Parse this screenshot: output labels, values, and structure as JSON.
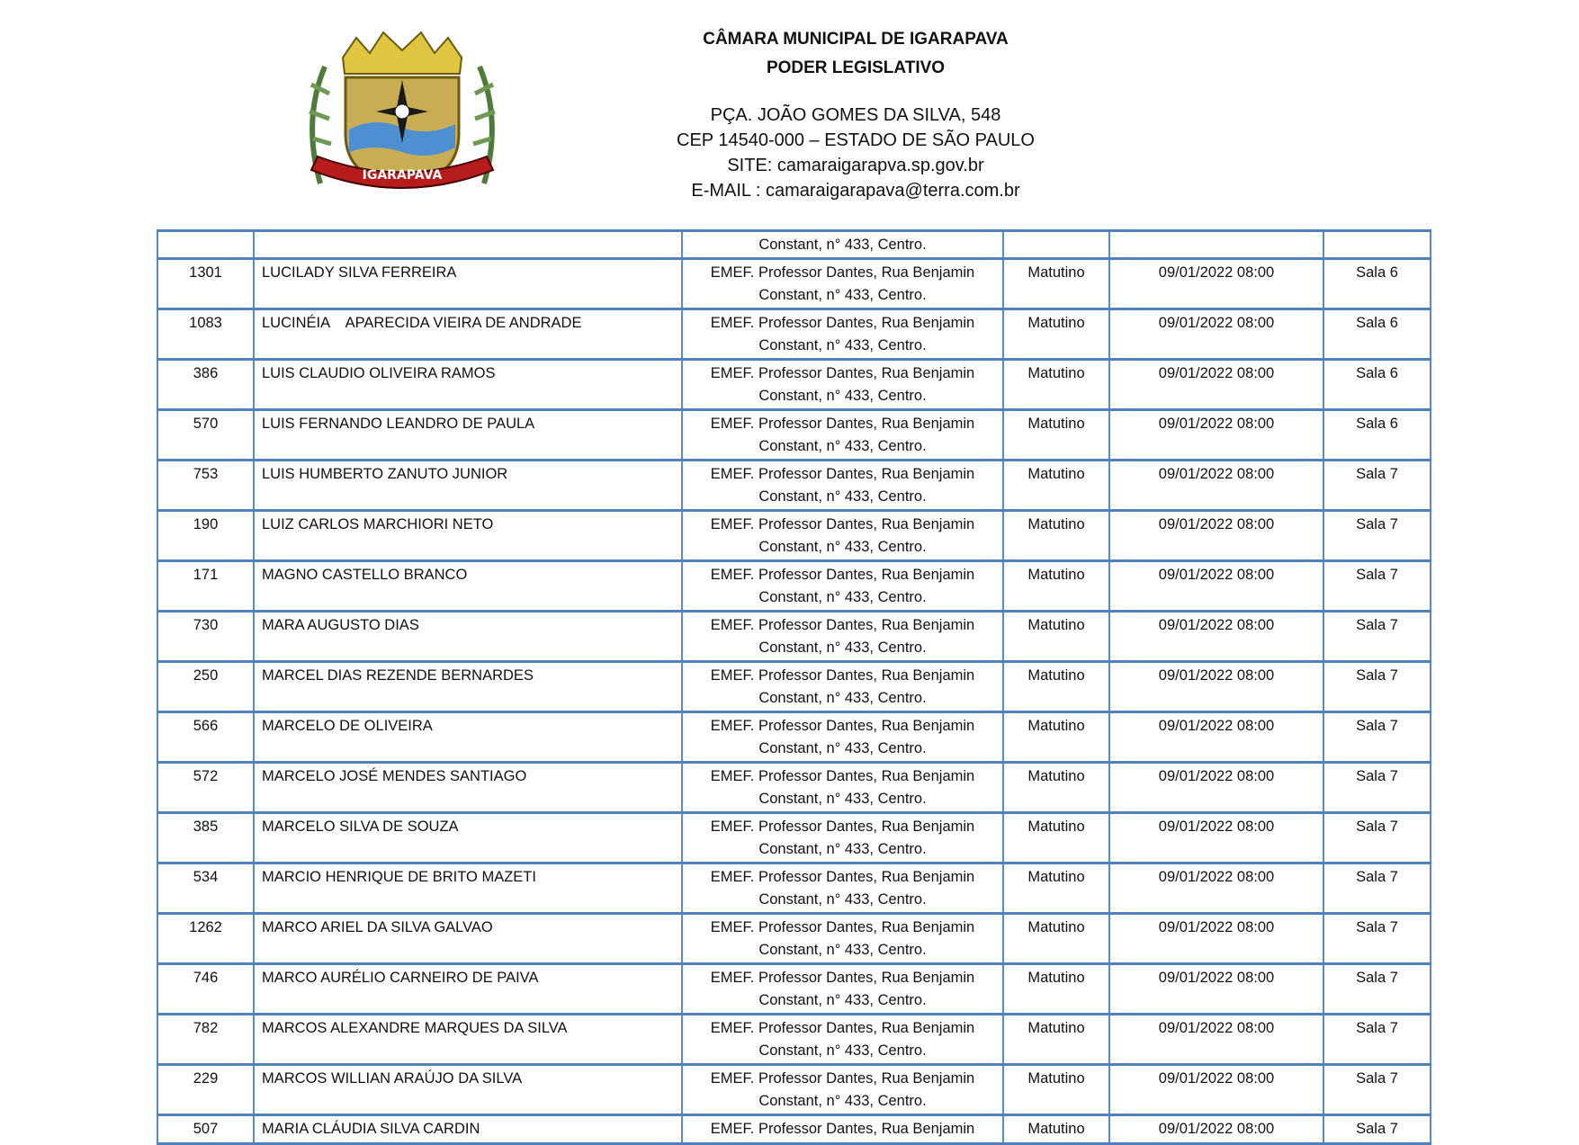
{
  "header": {
    "logo_text": "IGARAPAVA",
    "title": "CÂMARA MUNICIPAL DE IGARAPAVA",
    "subtitle": "PODER LEGISLATIVO",
    "address": "PÇA. JOÃO GOMES DA SILVA, 548",
    "cep": "CEP 14540-000 – ESTADO DE SÃO PAULO",
    "site": "SITE: camaraigarapva.sp.gov.br",
    "email": "E-MAIL : camaraigarapava@terra.com.br"
  },
  "table": {
    "continued_row": {
      "addr2": "Constant, n° 433, Centro."
    },
    "rows": [
      {
        "id": "1301",
        "name": "LUCILADY SILVA FERREIRA",
        "addr1": "EMEF. Professor Dantes, Rua Benjamin",
        "addr2": "Constant, n° 433, Centro.",
        "period": "Matutino",
        "datetime": "09/01/2022 08:00",
        "room": "Sala 6"
      },
      {
        "id": "1083",
        "name": "LUCINÉIA    APARECIDA VIEIRA DE ANDRADE",
        "addr1": "EMEF. Professor Dantes, Rua Benjamin",
        "addr2": "Constant, n° 433, Centro.",
        "period": "Matutino",
        "datetime": "09/01/2022 08:00",
        "room": "Sala 6"
      },
      {
        "id": "386",
        "name": "LUIS CLAUDIO OLIVEIRA RAMOS",
        "addr1": "EMEF. Professor Dantes, Rua Benjamin",
        "addr2": "Constant, n° 433, Centro.",
        "period": "Matutino",
        "datetime": "09/01/2022 08:00",
        "room": "Sala 6"
      },
      {
        "id": "570",
        "name": "LUIS FERNANDO LEANDRO DE PAULA",
        "addr1": "EMEF. Professor Dantes, Rua Benjamin",
        "addr2": "Constant, n° 433, Centro.",
        "period": "Matutino",
        "datetime": "09/01/2022 08:00",
        "room": "Sala 6"
      },
      {
        "id": "753",
        "name": "LUIS HUMBERTO ZANUTO JUNIOR",
        "addr1": "EMEF. Professor Dantes, Rua Benjamin",
        "addr2": "Constant, n° 433, Centro.",
        "period": "Matutino",
        "datetime": "09/01/2022 08:00",
        "room": "Sala 7"
      },
      {
        "id": "190",
        "name": "LUIZ CARLOS MARCHIORI NETO",
        "addr1": "EMEF. Professor Dantes, Rua Benjamin",
        "addr2": "Constant, n° 433, Centro.",
        "period": "Matutino",
        "datetime": "09/01/2022 08:00",
        "room": "Sala 7"
      },
      {
        "id": "171",
        "name": "MAGNO CASTELLO BRANCO",
        "addr1": "EMEF. Professor Dantes, Rua Benjamin",
        "addr2": "Constant, n° 433, Centro.",
        "period": "Matutino",
        "datetime": "09/01/2022 08:00",
        "room": "Sala 7"
      },
      {
        "id": "730",
        "name": "MARA AUGUSTO DIAS",
        "addr1": "EMEF. Professor Dantes, Rua Benjamin",
        "addr2": "Constant, n° 433, Centro.",
        "period": "Matutino",
        "datetime": "09/01/2022 08:00",
        "room": "Sala 7"
      },
      {
        "id": "250",
        "name": "MARCEL DIAS REZENDE BERNARDES",
        "addr1": "EMEF. Professor Dantes, Rua Benjamin",
        "addr2": "Constant, n° 433, Centro.",
        "period": "Matutino",
        "datetime": "09/01/2022 08:00",
        "room": "Sala 7"
      },
      {
        "id": "566",
        "name": "MARCELO DE OLIVEIRA",
        "addr1": "EMEF. Professor Dantes, Rua Benjamin",
        "addr2": "Constant, n° 433, Centro.",
        "period": "Matutino",
        "datetime": "09/01/2022 08:00",
        "room": "Sala 7"
      },
      {
        "id": "572",
        "name": "MARCELO JOSÉ MENDES SANTIAGO",
        "addr1": "EMEF. Professor Dantes, Rua Benjamin",
        "addr2": "Constant, n° 433, Centro.",
        "period": "Matutino",
        "datetime": "09/01/2022 08:00",
        "room": "Sala 7"
      },
      {
        "id": "385",
        "name": "MARCELO SILVA DE SOUZA",
        "addr1": "EMEF. Professor Dantes, Rua Benjamin",
        "addr2": "Constant, n° 433, Centro.",
        "period": "Matutino",
        "datetime": "09/01/2022 08:00",
        "room": "Sala 7"
      },
      {
        "id": "534",
        "name": "MARCIO HENRIQUE DE BRITO MAZETI",
        "addr1": "EMEF. Professor Dantes, Rua Benjamin",
        "addr2": "Constant, n° 433, Centro.",
        "period": "Matutino",
        "datetime": "09/01/2022 08:00",
        "room": "Sala 7"
      },
      {
        "id": "1262",
        "name": "MARCO ARIEL DA SILVA GALVAO",
        "addr1": "EMEF. Professor Dantes, Rua Benjamin",
        "addr2": "Constant, n° 433, Centro.",
        "period": "Matutino",
        "datetime": "09/01/2022 08:00",
        "room": "Sala 7"
      },
      {
        "id": "746",
        "name": "MARCO AURÉLIO CARNEIRO DE PAIVA",
        "addr1": "EMEF. Professor Dantes, Rua Benjamin",
        "addr2": "Constant, n° 433, Centro.",
        "period": "Matutino",
        "datetime": "09/01/2022 08:00",
        "room": "Sala 7"
      },
      {
        "id": "782",
        "name": "MARCOS ALEXANDRE MARQUES DA SILVA",
        "addr1": "EMEF. Professor Dantes, Rua Benjamin",
        "addr2": "Constant, n° 433, Centro.",
        "period": "Matutino",
        "datetime": "09/01/2022 08:00",
        "room": "Sala 7"
      },
      {
        "id": "229",
        "name": "MARCOS WILLIAN ARAÚJO DA SILVA",
        "addr1": "EMEF. Professor Dantes, Rua Benjamin",
        "addr2": "Constant, n° 433, Centro.",
        "period": "Matutino",
        "datetime": "09/01/2022 08:00",
        "room": "Sala 7"
      },
      {
        "id": "507",
        "name": "MARIA CLÁUDIA SILVA CARDIN",
        "addr1": "EMEF. Professor Dantes, Rua Benjamin",
        "addr2": "",
        "period": "Matutino",
        "datetime": "09/01/2022 08:00",
        "room": "Sala 7"
      }
    ]
  },
  "colors": {
    "border": "#4f81bd"
  }
}
